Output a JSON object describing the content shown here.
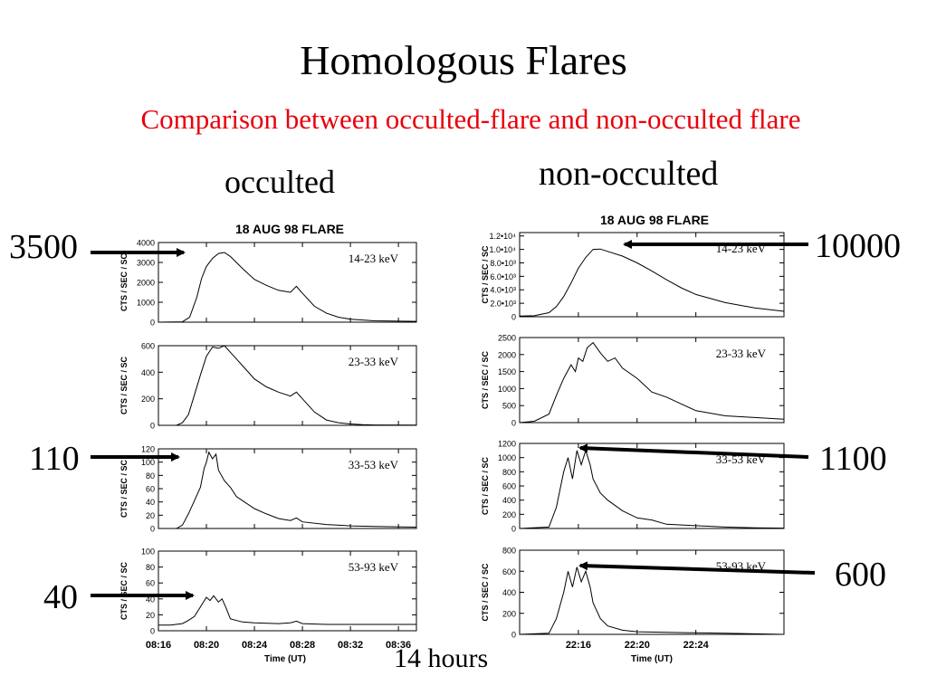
{
  "slide": {
    "title": "Homologous Flares",
    "subtitle": "Comparison between occulted-flare and non-occulted flare",
    "heading_occulted": "occulted",
    "heading_non_occulted": "non-occulted",
    "footnote": "14 hours"
  },
  "annotations": {
    "occ_1": "3500",
    "occ_2": "110",
    "occ_3": "40",
    "non_1": "10000",
    "non_2": "1100",
    "non_3": "600"
  },
  "chart_data": [
    {
      "type": "line",
      "title": "18 AUG 98 FLARE",
      "xlabel": "Time (UT)",
      "ylabel": "CTS / SEC / SC",
      "xlim": [
        16.0,
        37.5
      ],
      "xticks": [
        16,
        20,
        24,
        28,
        32,
        36
      ],
      "xtick_labels": [
        "08:16",
        "08:20",
        "08:24",
        "08:28",
        "08:32",
        "08:36"
      ],
      "panels": [
        {
          "band": "14-23 keV",
          "ylim": [
            0,
            4000
          ],
          "yticks": [
            0,
            1000,
            2000,
            3000,
            4000
          ],
          "ytick_labels": [
            "0",
            "1000",
            "2000",
            "3000",
            "4000"
          ],
          "x": [
            16.0,
            18.0,
            18.6,
            19.2,
            19.6,
            20.0,
            20.5,
            21.0,
            21.5,
            22.0,
            23.0,
            24.0,
            25.0,
            26.0,
            27.0,
            27.5,
            28.0,
            29.0,
            30.0,
            31.0,
            32.0,
            34.0,
            37.5
          ],
          "y": [
            0,
            20,
            250,
            1250,
            2200,
            2800,
            3200,
            3450,
            3500,
            3300,
            2700,
            2150,
            1850,
            1600,
            1500,
            1800,
            1450,
            800,
            450,
            250,
            150,
            70,
            40
          ]
        },
        {
          "band": "23-33 keV",
          "ylim": [
            0,
            600
          ],
          "yticks": [
            0,
            200,
            400,
            600
          ],
          "ytick_labels": [
            "0",
            "200",
            "400",
            "600"
          ],
          "x": [
            16.0,
            17.5,
            18.0,
            18.5,
            19.0,
            19.5,
            20.0,
            20.5,
            21.0,
            21.5,
            22.0,
            22.5,
            23.0,
            24.0,
            25.0,
            26.0,
            27.0,
            27.5,
            28.0,
            29.0,
            30.0,
            31.0,
            32.0,
            33.0,
            34.0,
            37.5
          ],
          "y": [
            0,
            0,
            20,
            80,
            230,
            380,
            520,
            590,
            580,
            600,
            550,
            500,
            450,
            350,
            290,
            250,
            220,
            250,
            200,
            100,
            40,
            20,
            10,
            5,
            3,
            2
          ]
        },
        {
          "band": "33-53 keV",
          "ylim": [
            0,
            120
          ],
          "yticks": [
            0,
            20,
            40,
            60,
            80,
            100,
            120
          ],
          "ytick_labels": [
            "0",
            "20",
            "40",
            "60",
            "80",
            "100",
            "120"
          ],
          "x": [
            16.0,
            17.5,
            18.0,
            18.5,
            19.0,
            19.5,
            19.8,
            20.0,
            20.2,
            20.5,
            20.8,
            21.0,
            21.5,
            22.0,
            22.5,
            23.0,
            24.0,
            25.0,
            26.0,
            27.0,
            27.5,
            28.0,
            30.0,
            32.0,
            34.0,
            37.5
          ],
          "y": [
            0,
            0,
            5,
            22,
            42,
            62,
            90,
            100,
            115,
            105,
            112,
            88,
            72,
            62,
            48,
            42,
            30,
            22,
            15,
            12,
            16,
            10,
            6,
            4,
            3,
            2
          ]
        },
        {
          "band": "53-93 keV",
          "ylim": [
            0,
            100
          ],
          "yticks": [
            0,
            20,
            40,
            60,
            80,
            100
          ],
          "ytick_labels": [
            "0",
            "20",
            "40",
            "60",
            "80",
            "100"
          ],
          "x": [
            16.0,
            17.0,
            18.0,
            18.5,
            19.0,
            19.5,
            20.0,
            20.3,
            20.6,
            21.0,
            21.3,
            21.6,
            22.0,
            23.0,
            24.0,
            26.0,
            27.0,
            27.5,
            28.0,
            30.0,
            37.5
          ],
          "y": [
            7,
            7,
            9,
            13,
            18,
            30,
            42,
            38,
            44,
            36,
            40,
            30,
            15,
            11,
            10,
            9,
            10,
            12,
            9,
            8,
            8
          ]
        }
      ]
    },
    {
      "type": "line",
      "title": "18 AUG 98 FLARE",
      "xlabel": "Time (UT)",
      "ylabel": "CTS / SEC / SC",
      "xlim": [
        12.0,
        30.0
      ],
      "xticks": [
        16,
        20,
        24
      ],
      "xtick_labels": [
        "22:16",
        "22:20",
        "22:24"
      ],
      "panels": [
        {
          "band": "14-23 keV",
          "ylim": [
            0,
            12500
          ],
          "yticks": [
            0,
            2000,
            4000,
            6000,
            8000,
            10000,
            12000
          ],
          "ytick_labels": [
            "0",
            "2.0•10³",
            "4.0•10³",
            "6.0•10³",
            "8.0•10³",
            "1.0•10⁴",
            "1.2•10⁴"
          ],
          "x": [
            12.0,
            13.0,
            14.0,
            14.5,
            15.0,
            15.5,
            16.0,
            16.5,
            17.0,
            17.5,
            18.0,
            19.0,
            20.0,
            21.0,
            22.0,
            23.0,
            24.0,
            26.0,
            28.0,
            30.0
          ],
          "y": [
            100,
            150,
            600,
            1500,
            3000,
            5000,
            7200,
            8800,
            10000,
            10050,
            9700,
            9000,
            8000,
            6800,
            5500,
            4300,
            3300,
            2100,
            1300,
            800
          ]
        },
        {
          "band": "23-33 keV",
          "ylim": [
            0,
            2500
          ],
          "yticks": [
            0,
            500,
            1000,
            1500,
            2000,
            2500
          ],
          "ytick_labels": [
            "0",
            "500",
            "1000",
            "1500",
            "2000",
            "2500"
          ],
          "x": [
            12.0,
            13.0,
            14.0,
            14.5,
            15.0,
            15.5,
            15.8,
            16.0,
            16.3,
            16.6,
            17.0,
            17.5,
            18.0,
            18.5,
            19.0,
            20.0,
            21.0,
            22.0,
            23.0,
            24.0,
            26.0,
            28.0,
            30.0
          ],
          "y": [
            0,
            40,
            250,
            800,
            1300,
            1700,
            1500,
            1900,
            1800,
            2200,
            2350,
            2050,
            1800,
            1900,
            1600,
            1300,
            900,
            750,
            550,
            350,
            200,
            150,
            100
          ]
        },
        {
          "band": "33-53 keV",
          "ylim": [
            0,
            1200
          ],
          "yticks": [
            0,
            200,
            400,
            600,
            800,
            1000,
            1200
          ],
          "ytick_labels": [
            "0",
            "200",
            "400",
            "600",
            "800",
            "1000",
            "1200"
          ],
          "x": [
            12.0,
            14.0,
            14.5,
            15.0,
            15.3,
            15.6,
            15.9,
            16.2,
            16.5,
            16.8,
            17.0,
            17.5,
            18.0,
            19.0,
            20.0,
            21.0,
            22.0,
            24.0,
            26.0,
            28.0,
            30.0
          ],
          "y": [
            0,
            20,
            300,
            800,
            1000,
            700,
            1100,
            900,
            1100,
            900,
            700,
            500,
            400,
            250,
            150,
            120,
            60,
            40,
            20,
            10,
            5
          ]
        },
        {
          "band": "53-93 keV",
          "ylim": [
            0,
            800
          ],
          "yticks": [
            0,
            200,
            400,
            600,
            800
          ],
          "ytick_labels": [
            "0",
            "200",
            "400",
            "600",
            "800"
          ],
          "x": [
            12.0,
            14.0,
            14.5,
            15.0,
            15.3,
            15.6,
            15.9,
            16.2,
            16.5,
            16.8,
            17.0,
            17.5,
            18.0,
            19.0,
            20.0,
            22.0,
            24.0,
            26.0,
            28.0,
            30.0
          ],
          "y": [
            0,
            10,
            150,
            400,
            600,
            450,
            640,
            500,
            600,
            450,
            300,
            150,
            80,
            40,
            25,
            20,
            15,
            10,
            5,
            0
          ]
        }
      ]
    }
  ]
}
